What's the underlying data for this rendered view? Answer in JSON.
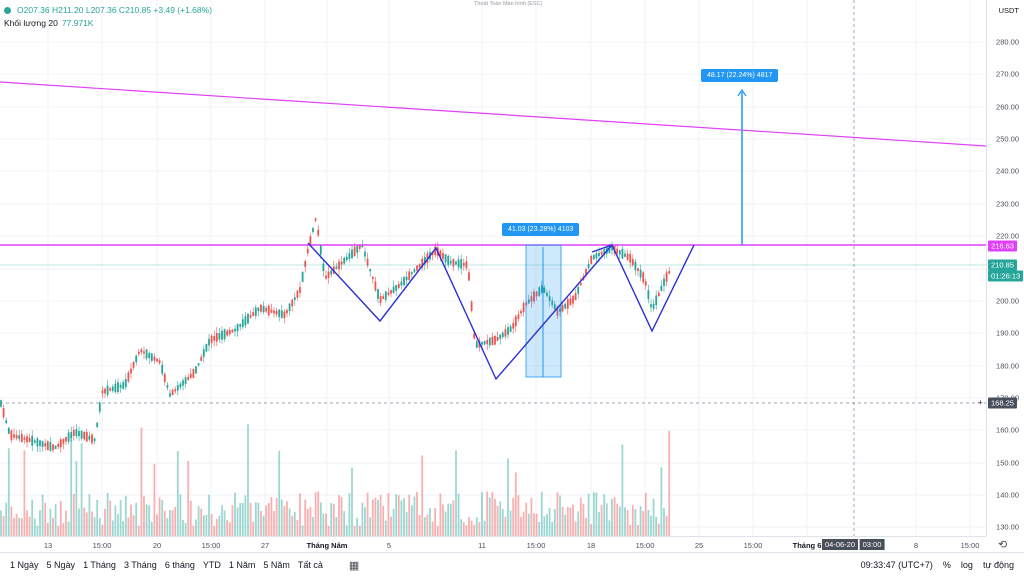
{
  "legend": {
    "ohlc_text": "O207.36  H211.20  L207.36  C210.85  +3.49 (+1.68%)",
    "volume_label": "Khối lượng 20",
    "volume_value": "77.971K"
  },
  "fullscreen_hint": "Thoát Toàn Màn hình (ESC)",
  "price_axis": {
    "currency": "USDT",
    "ticks": [
      "280.00",
      "270.00",
      "260.00",
      "250.00",
      "240.00",
      "230.00",
      "220.00",
      "200.00",
      "190.00",
      "180.00",
      "170.00",
      "160.00",
      "150.00",
      "140.00",
      "130.00"
    ],
    "resistance_label": "216.63",
    "last_price_label": "210.85",
    "countdown_label": "01:26:13",
    "crosshair_price_label": "168.25"
  },
  "time_axis": {
    "ticks": [
      "13",
      "15:00",
      "20",
      "15:00",
      "27",
      "Tháng Năm",
      "5",
      "11",
      "15:00",
      "18",
      "15:00",
      "25",
      "15:00",
      "Tháng 6",
      "8",
      "15:00"
    ],
    "crosshair_time_label": "04-06-20",
    "crosshair_time_extra": "03:00"
  },
  "measurements": {
    "box_label": "41.03 (23.28%) 4103",
    "arrow_label": "48.17 (22.24%) 4817"
  },
  "bottom_bar": {
    "ranges": [
      "1 Ngày",
      "5 Ngày",
      "1 Tháng",
      "3 Tháng",
      "6 tháng",
      "YTD",
      "1 Năm",
      "5 Năm",
      "Tất cả"
    ],
    "clock": "09:33:47 (UTC+7)",
    "percent_label": "%",
    "log_label": "log",
    "auto_label": "tự động"
  },
  "colors": {
    "up": "#26a69a",
    "down": "#ef5350",
    "trend_line": "#e040fb",
    "pattern_line": "#2b2fd6",
    "measure_blue": "#2196f3"
  },
  "chart_data": {
    "type": "candlestick",
    "ylim": [
      125,
      290
    ],
    "resistance": 216.63,
    "last_close": 210.85,
    "crosshair_price": 168.25
  }
}
